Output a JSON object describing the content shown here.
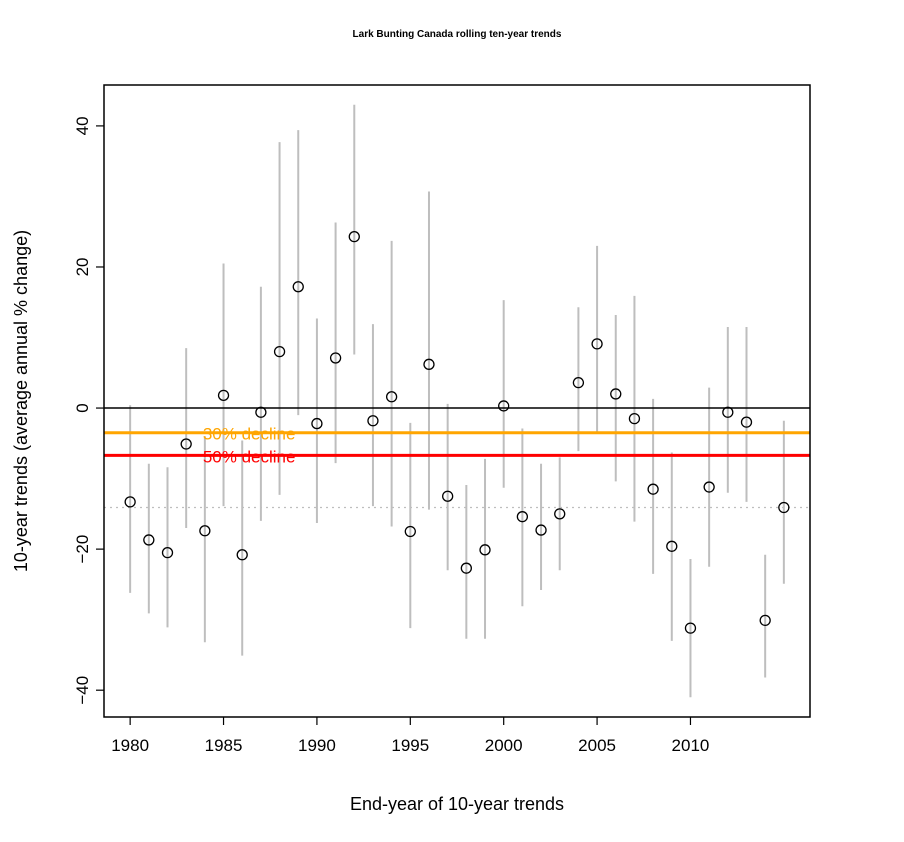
{
  "chart_data": {
    "type": "scatter",
    "title": "Lark Bunting Canada rolling ten-year trends",
    "xlabel": "End-year of 10-year trends",
    "ylabel": "10-year trends (average annual % change)",
    "xlim": [
      1978.6,
      2016.4
    ],
    "ylim": [
      -43.8,
      45.8
    ],
    "xticks": [
      1980,
      1985,
      1990,
      1995,
      2000,
      2005,
      2010
    ],
    "yticks": [
      -40,
      -20,
      0,
      20,
      40
    ],
    "grid": false,
    "points": [
      {
        "year": 1980,
        "trend": -13.3,
        "lower": -26.2,
        "upper": 0.4
      },
      {
        "year": 1981,
        "trend": -18.7,
        "lower": -29.1,
        "upper": -7.9
      },
      {
        "year": 1982,
        "trend": -20.5,
        "lower": -31.1,
        "upper": -8.4
      },
      {
        "year": 1983,
        "trend": -5.1,
        "lower": -17.0,
        "upper": 8.5
      },
      {
        "year": 1984,
        "trend": -17.4,
        "lower": -33.2,
        "upper": -4.0
      },
      {
        "year": 1985,
        "trend": 1.8,
        "lower": -13.9,
        "upper": 20.5
      },
      {
        "year": 1986,
        "trend": -20.8,
        "lower": -35.1,
        "upper": -4.6
      },
      {
        "year": 1987,
        "trend": -0.6,
        "lower": -16.0,
        "upper": 17.2
      },
      {
        "year": 1988,
        "trend": 8.0,
        "lower": -12.3,
        "upper": 37.7
      },
      {
        "year": 1989,
        "trend": 17.2,
        "lower": -1.0,
        "upper": 39.4
      },
      {
        "year": 1990,
        "trend": -2.2,
        "lower": -16.3,
        "upper": 12.7
      },
      {
        "year": 1991,
        "trend": 7.1,
        "lower": -7.8,
        "upper": 26.3
      },
      {
        "year": 1992,
        "trend": 24.3,
        "lower": 7.6,
        "upper": 43.0
      },
      {
        "year": 1993,
        "trend": -1.8,
        "lower": -13.9,
        "upper": 11.9
      },
      {
        "year": 1994,
        "trend": 1.6,
        "lower": -16.8,
        "upper": 23.7
      },
      {
        "year": 1995,
        "trend": -17.5,
        "lower": -31.2,
        "upper": -2.1
      },
      {
        "year": 1996,
        "trend": 6.2,
        "lower": -14.4,
        "upper": 30.7
      },
      {
        "year": 1997,
        "trend": -12.5,
        "lower": -23.0,
        "upper": 0.6
      },
      {
        "year": 1998,
        "trend": -22.7,
        "lower": -32.7,
        "upper": -10.9
      },
      {
        "year": 1999,
        "trend": -20.1,
        "lower": -32.7,
        "upper": -7.2
      },
      {
        "year": 2000,
        "trend": 0.3,
        "lower": -11.3,
        "upper": 15.3
      },
      {
        "year": 2001,
        "trend": -15.4,
        "lower": -28.1,
        "upper": -2.9
      },
      {
        "year": 2002,
        "trend": -17.3,
        "lower": -25.8,
        "upper": -7.9
      },
      {
        "year": 2003,
        "trend": -15.0,
        "lower": -23.0,
        "upper": -7.0
      },
      {
        "year": 2004,
        "trend": 3.6,
        "lower": -6.1,
        "upper": 14.3
      },
      {
        "year": 2005,
        "trend": 9.1,
        "lower": -3.4,
        "upper": 23.0
      },
      {
        "year": 2006,
        "trend": 2.0,
        "lower": -10.4,
        "upper": 13.2
      },
      {
        "year": 2007,
        "trend": -1.5,
        "lower": -16.1,
        "upper": 15.9
      },
      {
        "year": 2008,
        "trend": -11.5,
        "lower": -23.5,
        "upper": 1.3
      },
      {
        "year": 2009,
        "trend": -19.6,
        "lower": -33.0,
        "upper": -6.3
      },
      {
        "year": 2010,
        "trend": -31.2,
        "lower": -41.0,
        "upper": -21.4
      },
      {
        "year": 2011,
        "trend": -11.2,
        "lower": -22.5,
        "upper": 2.9
      },
      {
        "year": 2012,
        "trend": -0.6,
        "lower": -12.0,
        "upper": 11.5
      },
      {
        "year": 2013,
        "trend": -2.0,
        "lower": -13.3,
        "upper": 11.5
      },
      {
        "year": 2014,
        "trend": -30.1,
        "lower": -38.2,
        "upper": -20.8
      },
      {
        "year": 2015,
        "trend": -14.1,
        "lower": -24.9,
        "upper": -1.8
      }
    ],
    "reference_lines": [
      {
        "value": 0,
        "color": "#000000",
        "style": "solid",
        "label": ""
      },
      {
        "value": -3.5,
        "color": "#FFA500",
        "style": "solid",
        "label": "30% decline"
      },
      {
        "value": -6.7,
        "color": "#FF0000",
        "style": "solid",
        "label": "50% decline"
      },
      {
        "value": -14.1,
        "color": "#BEBEBE",
        "style": "dotted",
        "label": ""
      }
    ],
    "label_x": 1984,
    "colors": {
      "points": "#000000",
      "intervals": "#BEBEBE"
    }
  }
}
